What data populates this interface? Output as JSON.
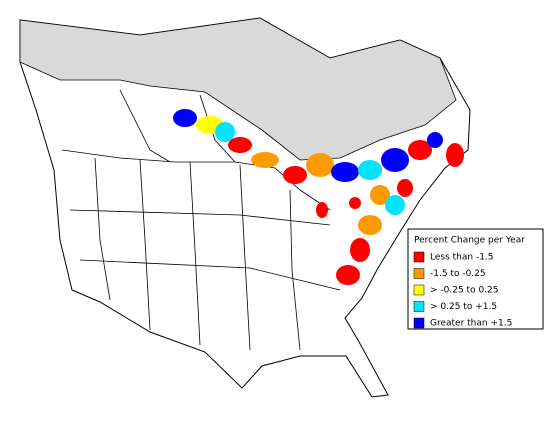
{
  "legend": {
    "title": "Percent Change per Year",
    "items": [
      {
        "label": "Less than -1.5",
        "color": "#ff0000"
      },
      {
        "label": "-1.5 to -0.25",
        "color": "#ff9900"
      },
      {
        "label": "> -0.25 to 0.25",
        "color": "#ffff00"
      },
      {
        "label": "> 0.25 to +1.5",
        "color": "#00e5ff"
      },
      {
        "label": "Greater than +1.5",
        "color": "#0000ff"
      }
    ]
  }
}
